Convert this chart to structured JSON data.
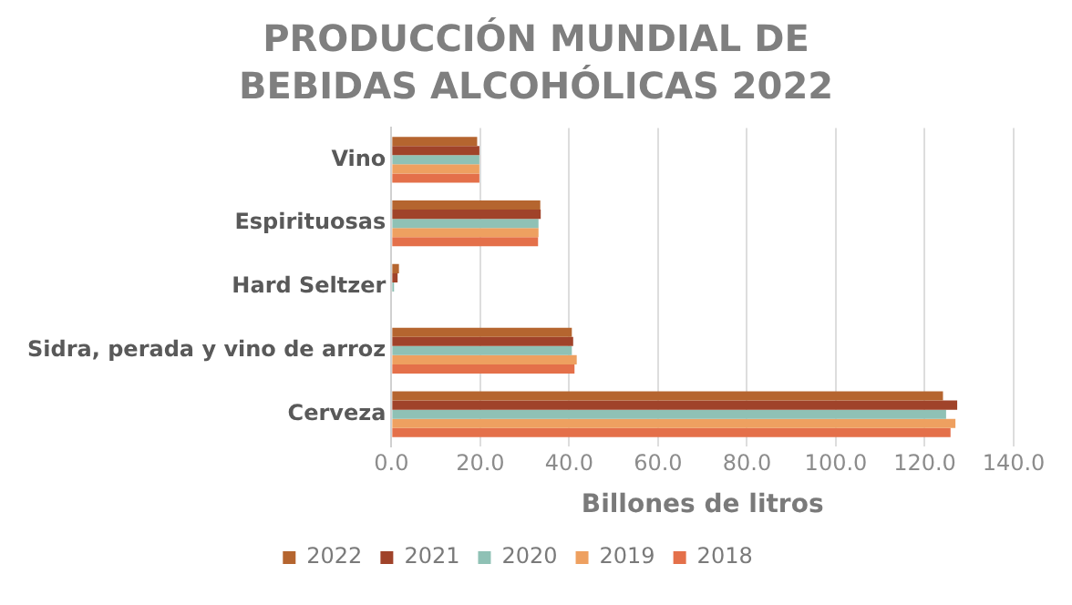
{
  "chart_data": {
    "type": "bar",
    "orientation": "horizontal",
    "title": "PRODUCCIÓN MUNDIAL DE BEBIDAS ALCOHÓLICAS 2022",
    "xlabel": "Billones de litros",
    "categories": [
      "Vino",
      "Espirituosas",
      "Hard Seltzer",
      "Sidra, perada y vino de arroz",
      "Cerveza"
    ],
    "series": [
      {
        "name": "2022",
        "color": "#b5652f",
        "values": [
          19.3,
          33.5,
          1.7,
          40.6,
          124.1
        ]
      },
      {
        "name": "2021",
        "color": "#a0432a",
        "values": [
          19.8,
          33.6,
          1.4,
          40.9,
          127.3
        ]
      },
      {
        "name": "2020",
        "color": "#8fc1b5",
        "values": [
          19.8,
          33.1,
          0.6,
          40.6,
          124.8
        ]
      },
      {
        "name": "2019",
        "color": "#eea060",
        "values": [
          19.8,
          33.1,
          null,
          41.7,
          126.9
        ]
      },
      {
        "name": "2018",
        "color": "#e4704a",
        "values": [
          19.8,
          33.0,
          null,
          41.2,
          125.8
        ]
      }
    ],
    "xlim": [
      0,
      140
    ],
    "xticks": [
      {
        "value": 0,
        "label": "0.0"
      },
      {
        "value": 20,
        "label": "20.0"
      },
      {
        "value": 40,
        "label": "40.0"
      },
      {
        "value": 60,
        "label": "60.0"
      },
      {
        "value": 80,
        "label": "80.0"
      },
      {
        "value": 100,
        "label": "100.0"
      },
      {
        "value": 120,
        "label": "120.0"
      },
      {
        "value": 140,
        "label": "140.0"
      }
    ],
    "grid": "x",
    "legend": "bottom"
  }
}
